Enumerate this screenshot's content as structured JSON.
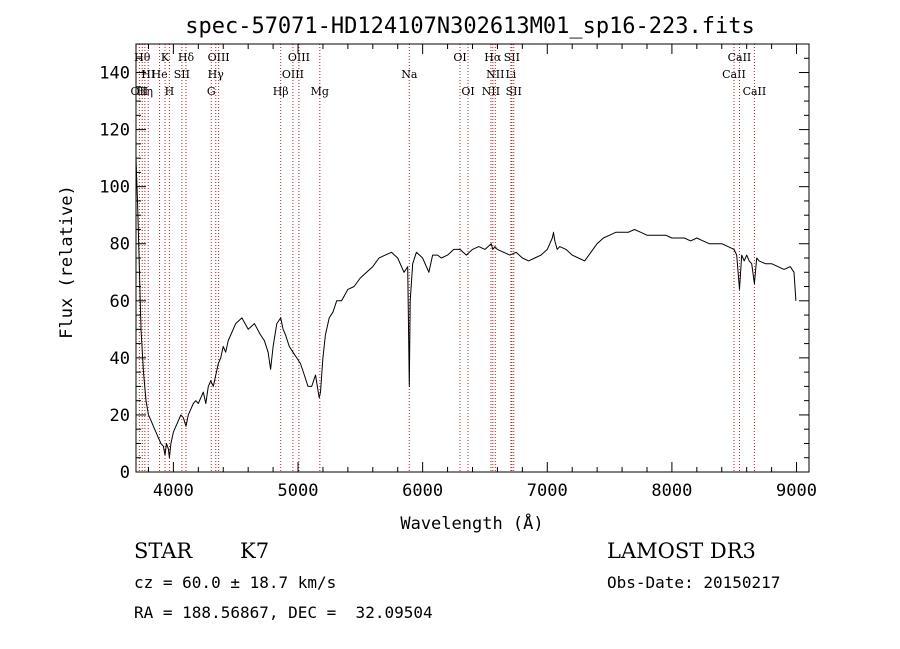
{
  "chart_data": {
    "type": "line",
    "title": "spec-57071-HD124107N302613M01_sp16-223.fits",
    "xlabel": "Wavelength (Å)",
    "ylabel": "Flux (relative)",
    "xlim": [
      3700,
      9100
    ],
    "ylim": [
      0,
      150
    ],
    "xticks": [
      "4000",
      "5000",
      "6000",
      "7000",
      "8000",
      "9000"
    ],
    "yticks": [
      "0",
      "20",
      "40",
      "60",
      "80",
      "100",
      "120",
      "140"
    ],
    "grid": false,
    "legend": "none",
    "series": [
      {
        "color": "#000000",
        "x": [
          3700,
          3712,
          3725,
          3740,
          3760,
          3780,
          3800,
          3820,
          3840,
          3860,
          3880,
          3900,
          3920,
          3933,
          3945,
          3960,
          3968,
          3980,
          4000,
          4020,
          4040,
          4060,
          4080,
          4101,
          4120,
          4140,
          4160,
          4180,
          4200,
          4220,
          4240,
          4260,
          4280,
          4300,
          4320,
          4340,
          4360,
          4380,
          4400,
          4420,
          4440,
          4460,
          4480,
          4500,
          4550,
          4600,
          4650,
          4700,
          4730,
          4760,
          4780,
          4800,
          4830,
          4861,
          4880,
          4900,
          4930,
          4960,
          4990,
          5020,
          5050,
          5080,
          5110,
          5140,
          5170,
          5180,
          5200,
          5220,
          5250,
          5280,
          5310,
          5350,
          5400,
          5450,
          5500,
          5550,
          5600,
          5650,
          5700,
          5750,
          5800,
          5850,
          5880,
          5893,
          5900,
          5920,
          5950,
          6000,
          6050,
          6080,
          6100,
          6120,
          6150,
          6200,
          6250,
          6300,
          6350,
          6400,
          6450,
          6500,
          6550,
          6563,
          6580,
          6600,
          6650,
          6700,
          6750,
          6800,
          6850,
          6900,
          6950,
          7000,
          7020,
          7040,
          7050,
          7060,
          7080,
          7100,
          7150,
          7200,
          7250,
          7300,
          7350,
          7400,
          7450,
          7500,
          7550,
          7600,
          7650,
          7700,
          7750,
          7800,
          7850,
          7900,
          7950,
          8000,
          8050,
          8100,
          8150,
          8200,
          8250,
          8300,
          8350,
          8400,
          8450,
          8498,
          8520,
          8542,
          8560,
          8580,
          8600,
          8620,
          8640,
          8662,
          8680,
          8700,
          8750,
          8800,
          8850,
          8900,
          8950,
          8980,
          8995
        ],
        "y": [
          110,
          95,
          75,
          50,
          35,
          25,
          20,
          18,
          16,
          14,
          12,
          10,
          9,
          6,
          10,
          8,
          5,
          10,
          14,
          16,
          18,
          20,
          19,
          16,
          20,
          22,
          24,
          25,
          24,
          26,
          28,
          24,
          30,
          32,
          30,
          34,
          38,
          40,
          44,
          42,
          46,
          48,
          50,
          52,
          54,
          50,
          52,
          48,
          46,
          42,
          36,
          44,
          52,
          54,
          50,
          48,
          44,
          42,
          40,
          38,
          34,
          30,
          30,
          34,
          26,
          28,
          40,
          48,
          54,
          56,
          60,
          60,
          64,
          65,
          68,
          70,
          72,
          75,
          76,
          77,
          75,
          70,
          72,
          30,
          60,
          73,
          77,
          75,
          70,
          76,
          76,
          76,
          75,
          76,
          78,
          78,
          76,
          78,
          79,
          78,
          80,
          78,
          79,
          78,
          77,
          76,
          77,
          75,
          74,
          75,
          76,
          78,
          80,
          82,
          84,
          81,
          78,
          79,
          78,
          76,
          75,
          74,
          77,
          80,
          82,
          83,
          84,
          84,
          84,
          85,
          84,
          83,
          83,
          83,
          83,
          82,
          82,
          82,
          81,
          82,
          81,
          80,
          80,
          80,
          79,
          78,
          76,
          64,
          76,
          74,
          76,
          74,
          73,
          66,
          75,
          74,
          73,
          73,
          72,
          71,
          72,
          70,
          60
        ]
      }
    ],
    "line_markers": [
      {
        "wl": 3750,
        "text": "Hθ",
        "row": 0
      },
      {
        "wl": 3771,
        "text": "Hη",
        "row": 2
      },
      {
        "wl": 3798,
        "text": "HI",
        "row": 1
      },
      {
        "wl": 3727,
        "text": "OII",
        "row": 2
      },
      {
        "wl": 3889,
        "text": "He",
        "row": 1
      },
      {
        "wl": 3933,
        "text": "K",
        "row": 0
      },
      {
        "wl": 3968,
        "text": "H",
        "row": 2
      },
      {
        "wl": 4068,
        "text": "SII",
        "row": 1
      },
      {
        "wl": 4101,
        "text": "Hδ",
        "row": 0
      },
      {
        "wl": 4304,
        "text": "G",
        "row": 2
      },
      {
        "wl": 4340,
        "text": "Hγ",
        "row": 1
      },
      {
        "wl": 4363,
        "text": "OIII",
        "row": 0
      },
      {
        "wl": 4861,
        "text": "Hβ",
        "row": 2
      },
      {
        "wl": 4959,
        "text": "OIII",
        "row": 1
      },
      {
        "wl": 5007,
        "text": "OIII",
        "row": 0
      },
      {
        "wl": 5175,
        "text": "Mg",
        "row": 2
      },
      {
        "wl": 5893,
        "text": "Na",
        "row": 1
      },
      {
        "wl": 6300,
        "text": "OI",
        "row": 0
      },
      {
        "wl": 6364,
        "text": "OI",
        "row": 2
      },
      {
        "wl": 6548,
        "text": "NII",
        "row": 2
      },
      {
        "wl": 6563,
        "text": "Hα",
        "row": 0
      },
      {
        "wl": 6583,
        "text": "NII",
        "row": 1
      },
      {
        "wl": 6708,
        "text": "Li",
        "row": 1
      },
      {
        "wl": 6716,
        "text": "SII",
        "row": 0
      },
      {
        "wl": 6731,
        "text": "SII",
        "row": 2
      },
      {
        "wl": 8498,
        "text": "CaII",
        "row": 1
      },
      {
        "wl": 8542,
        "text": "CaII",
        "row": 0
      },
      {
        "wl": 8662,
        "text": "CaII",
        "row": 2
      }
    ]
  },
  "info": {
    "object_class": "STAR",
    "subclass": "K7",
    "survey": "LAMOST DR3",
    "cz": "cz = 60.0 ± 18.7 km/s",
    "obs_date": "Obs-Date: 20150217",
    "coords": "RA = 188.56867, DEC =  32.09504"
  }
}
